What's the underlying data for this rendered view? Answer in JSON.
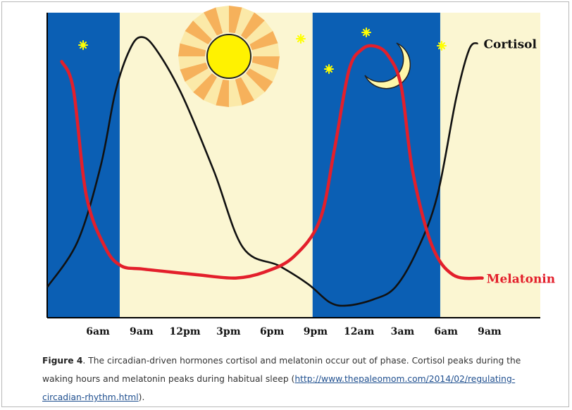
{
  "colors": {
    "night": "#0b5fb4",
    "day": "#fbf6d2",
    "cortisol": "#111111",
    "melatonin": "#e31f2b",
    "sun_core": "#fff200",
    "sun_ray_a": "#f6b15b",
    "sun_ray_b": "#fbe9a8",
    "moon": "#fff7a8",
    "star": "#ffff00"
  },
  "chart_data": {
    "type": "line",
    "title": "",
    "xlabel": "",
    "ylabel": "",
    "x_ticks": [
      "6am",
      "9am",
      "12pm",
      "3pm",
      "6pm",
      "9pm",
      "12am",
      "3am",
      "6am",
      "9am"
    ],
    "x_tick_hours": [
      6,
      9,
      12,
      15,
      18,
      21,
      24,
      27,
      30,
      33
    ],
    "x_range_hours": [
      2.5,
      36.5
    ],
    "y_range": [
      0,
      100
    ],
    "night_bands_hours": [
      [
        2.5,
        7.5
      ],
      [
        20.8,
        29.6
      ]
    ],
    "day_bands_hours": [
      [
        7.5,
        20.8
      ],
      [
        29.6,
        36.5
      ]
    ],
    "series": [
      {
        "name": "Cortisol",
        "points": [
          [
            2.5,
            10
          ],
          [
            4.6,
            25
          ],
          [
            6.2,
            50
          ],
          [
            7.2,
            74
          ],
          [
            8.2,
            88
          ],
          [
            9.0,
            92
          ],
          [
            10.0,
            88
          ],
          [
            11.8,
            73
          ],
          [
            14.0,
            48
          ],
          [
            16.0,
            23
          ],
          [
            18.5,
            17
          ],
          [
            20.5,
            11
          ],
          [
            22.0,
            5
          ],
          [
            23.2,
            4
          ],
          [
            25.0,
            6
          ],
          [
            26.5,
            10
          ],
          [
            28.0,
            22
          ],
          [
            29.4,
            40
          ],
          [
            30.7,
            72
          ],
          [
            31.6,
            88
          ],
          [
            32.2,
            90
          ]
        ]
      },
      {
        "name": "Melatonin",
        "points": [
          [
            3.5,
            84
          ],
          [
            4.3,
            75
          ],
          [
            5.2,
            40
          ],
          [
            6.5,
            23
          ],
          [
            7.6,
            17
          ],
          [
            9.0,
            16
          ],
          [
            11.0,
            15
          ],
          [
            13.0,
            14
          ],
          [
            15.5,
            13
          ],
          [
            17.5,
            15
          ],
          [
            19.5,
            20
          ],
          [
            21.3,
            32
          ],
          [
            22.3,
            55
          ],
          [
            23.3,
            81
          ],
          [
            24.2,
            88
          ],
          [
            25.1,
            89
          ],
          [
            26.0,
            86
          ],
          [
            26.9,
            76
          ],
          [
            27.7,
            48
          ],
          [
            29.0,
            24
          ],
          [
            30.5,
            14
          ],
          [
            32.5,
            13
          ]
        ]
      }
    ]
  },
  "caption": {
    "label": "Figure 4",
    "text": ". The circadian-driven hormones cortisol and melatonin occur out of phase. Cortisol peaks during the waking hours and melatonin peaks during habitual sleep (",
    "link": "http://www.thepaleomom.com/2014/02/regulating-circadian-rhythm.html",
    "suffix": ")."
  }
}
